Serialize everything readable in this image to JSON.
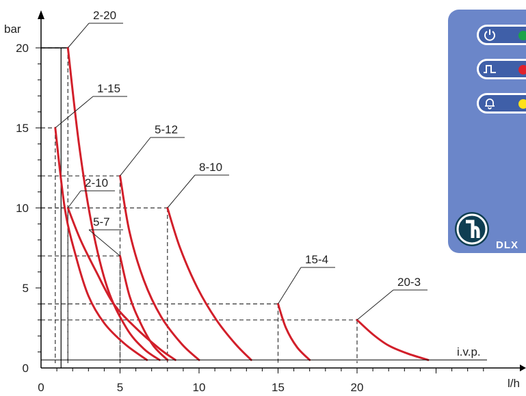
{
  "chart_data": {
    "type": "line",
    "title": "",
    "xlabel": "l/h",
    "ylabel": "bar",
    "xlim": [
      0,
      25
    ],
    "ylim": [
      0,
      20
    ],
    "x_ticks": [
      "0",
      "5",
      "10",
      "15",
      "20"
    ],
    "y_ticks": [
      "0",
      "5",
      "10",
      "15",
      "20"
    ],
    "grid": false,
    "annotation": "i.v.p.",
    "series": [
      {
        "name": "2-20",
        "x": [
          1.7,
          2.4,
          3.2,
          4.2,
          5.4,
          6.5,
          7.5
        ],
        "y": [
          20,
          14,
          9,
          5,
          2.5,
          1.2,
          0.5
        ]
      },
      {
        "name": "1-15",
        "x": [
          0.9,
          1.5,
          2.2,
          3.0,
          4.0,
          5.3,
          6.7
        ],
        "y": [
          15,
          10,
          7,
          4.5,
          2.8,
          1.5,
          0.5
        ]
      },
      {
        "name": "2-10",
        "x": [
          1.7,
          2.5,
          3.5,
          4.6,
          6.0,
          7.5,
          8.5
        ],
        "y": [
          10,
          8,
          6,
          4,
          2.5,
          1.2,
          0.5
        ]
      },
      {
        "name": "5-7",
        "x": [
          5.0,
          5.6,
          6.3,
          7.1,
          8.0
        ],
        "y": [
          7,
          4.5,
          2.8,
          1.4,
          0.5
        ]
      },
      {
        "name": "5-12",
        "x": [
          5.0,
          5.6,
          6.5,
          7.6,
          8.9,
          10.0
        ],
        "y": [
          12,
          8.5,
          5.5,
          3.2,
          1.5,
          0.5
        ]
      },
      {
        "name": "8-10",
        "x": [
          8.0,
          8.8,
          9.9,
          11.1,
          12.3,
          13.3
        ],
        "y": [
          10,
          7.5,
          5,
          3,
          1.5,
          0.5
        ]
      },
      {
        "name": "15-4",
        "x": [
          15.0,
          15.5,
          16.2,
          17.0
        ],
        "y": [
          4,
          2.5,
          1.3,
          0.5
        ]
      },
      {
        "name": "20-3",
        "x": [
          20.0,
          21.0,
          22.0,
          23.2,
          24.5
        ],
        "y": [
          3,
          2.1,
          1.4,
          0.9,
          0.5
        ]
      }
    ],
    "reference_levels": [
      {
        "x": 1.7,
        "y": 20
      },
      {
        "x": 0.9,
        "y": 15
      },
      {
        "x": 5.0,
        "y": 12
      },
      {
        "x": 1.7,
        "y": 10
      },
      {
        "x": 8.0,
        "y": 10
      },
      {
        "x": 5.0,
        "y": 7
      },
      {
        "x": 15.0,
        "y": 4
      },
      {
        "x": 20.0,
        "y": 3
      }
    ],
    "colors": {
      "curve": "#d21f2a",
      "axis": "#000000",
      "dash": "#333333"
    }
  },
  "panel": {
    "brand": "DLX",
    "leds": [
      {
        "icon": "power-icon",
        "color": "#1aa34a"
      },
      {
        "icon": "pulse-icon",
        "color": "#e0212b"
      },
      {
        "icon": "bell-icon",
        "color": "#ffe11a"
      }
    ],
    "background": "#6b86c9"
  }
}
